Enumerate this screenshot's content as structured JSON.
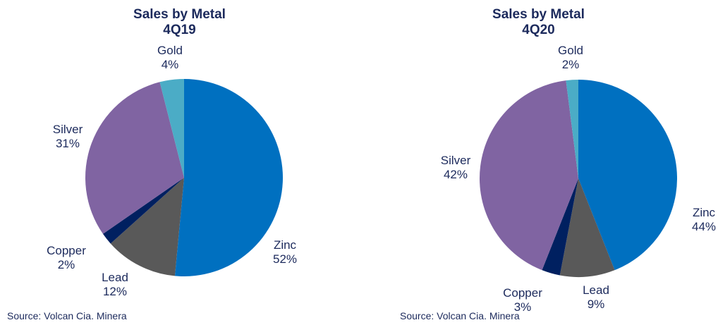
{
  "colors": {
    "Zinc": "#0070c0",
    "Lead": "#595959",
    "Copper": "#002060",
    "Silver": "#8064a2",
    "Gold": "#4bacc6",
    "text": "#1c2a5c"
  },
  "chart_data": [
    {
      "type": "pie",
      "title": "Sales by Metal",
      "subtitle": "4Q19",
      "source": "Source: Volcan Cia. Minera",
      "slices": [
        {
          "name": "Zinc",
          "value": 52,
          "label": "52%"
        },
        {
          "name": "Lead",
          "value": 12,
          "label": "12%"
        },
        {
          "name": "Copper",
          "value": 2,
          "label": "2%"
        },
        {
          "name": "Silver",
          "value": 31,
          "label": "31%"
        },
        {
          "name": "Gold",
          "value": 4,
          "label": "4%"
        }
      ]
    },
    {
      "type": "pie",
      "title": "Sales by Metal",
      "subtitle": "4Q20",
      "source": "Source: Volcan Cia. Minera",
      "slices": [
        {
          "name": "Zinc",
          "value": 44,
          "label": "44%"
        },
        {
          "name": "Lead",
          "value": 9,
          "label": "9%"
        },
        {
          "name": "Copper",
          "value": 3,
          "label": "3%"
        },
        {
          "name": "Silver",
          "value": 42,
          "label": "42%"
        },
        {
          "name": "Gold",
          "value": 2,
          "label": "2%"
        }
      ]
    }
  ]
}
